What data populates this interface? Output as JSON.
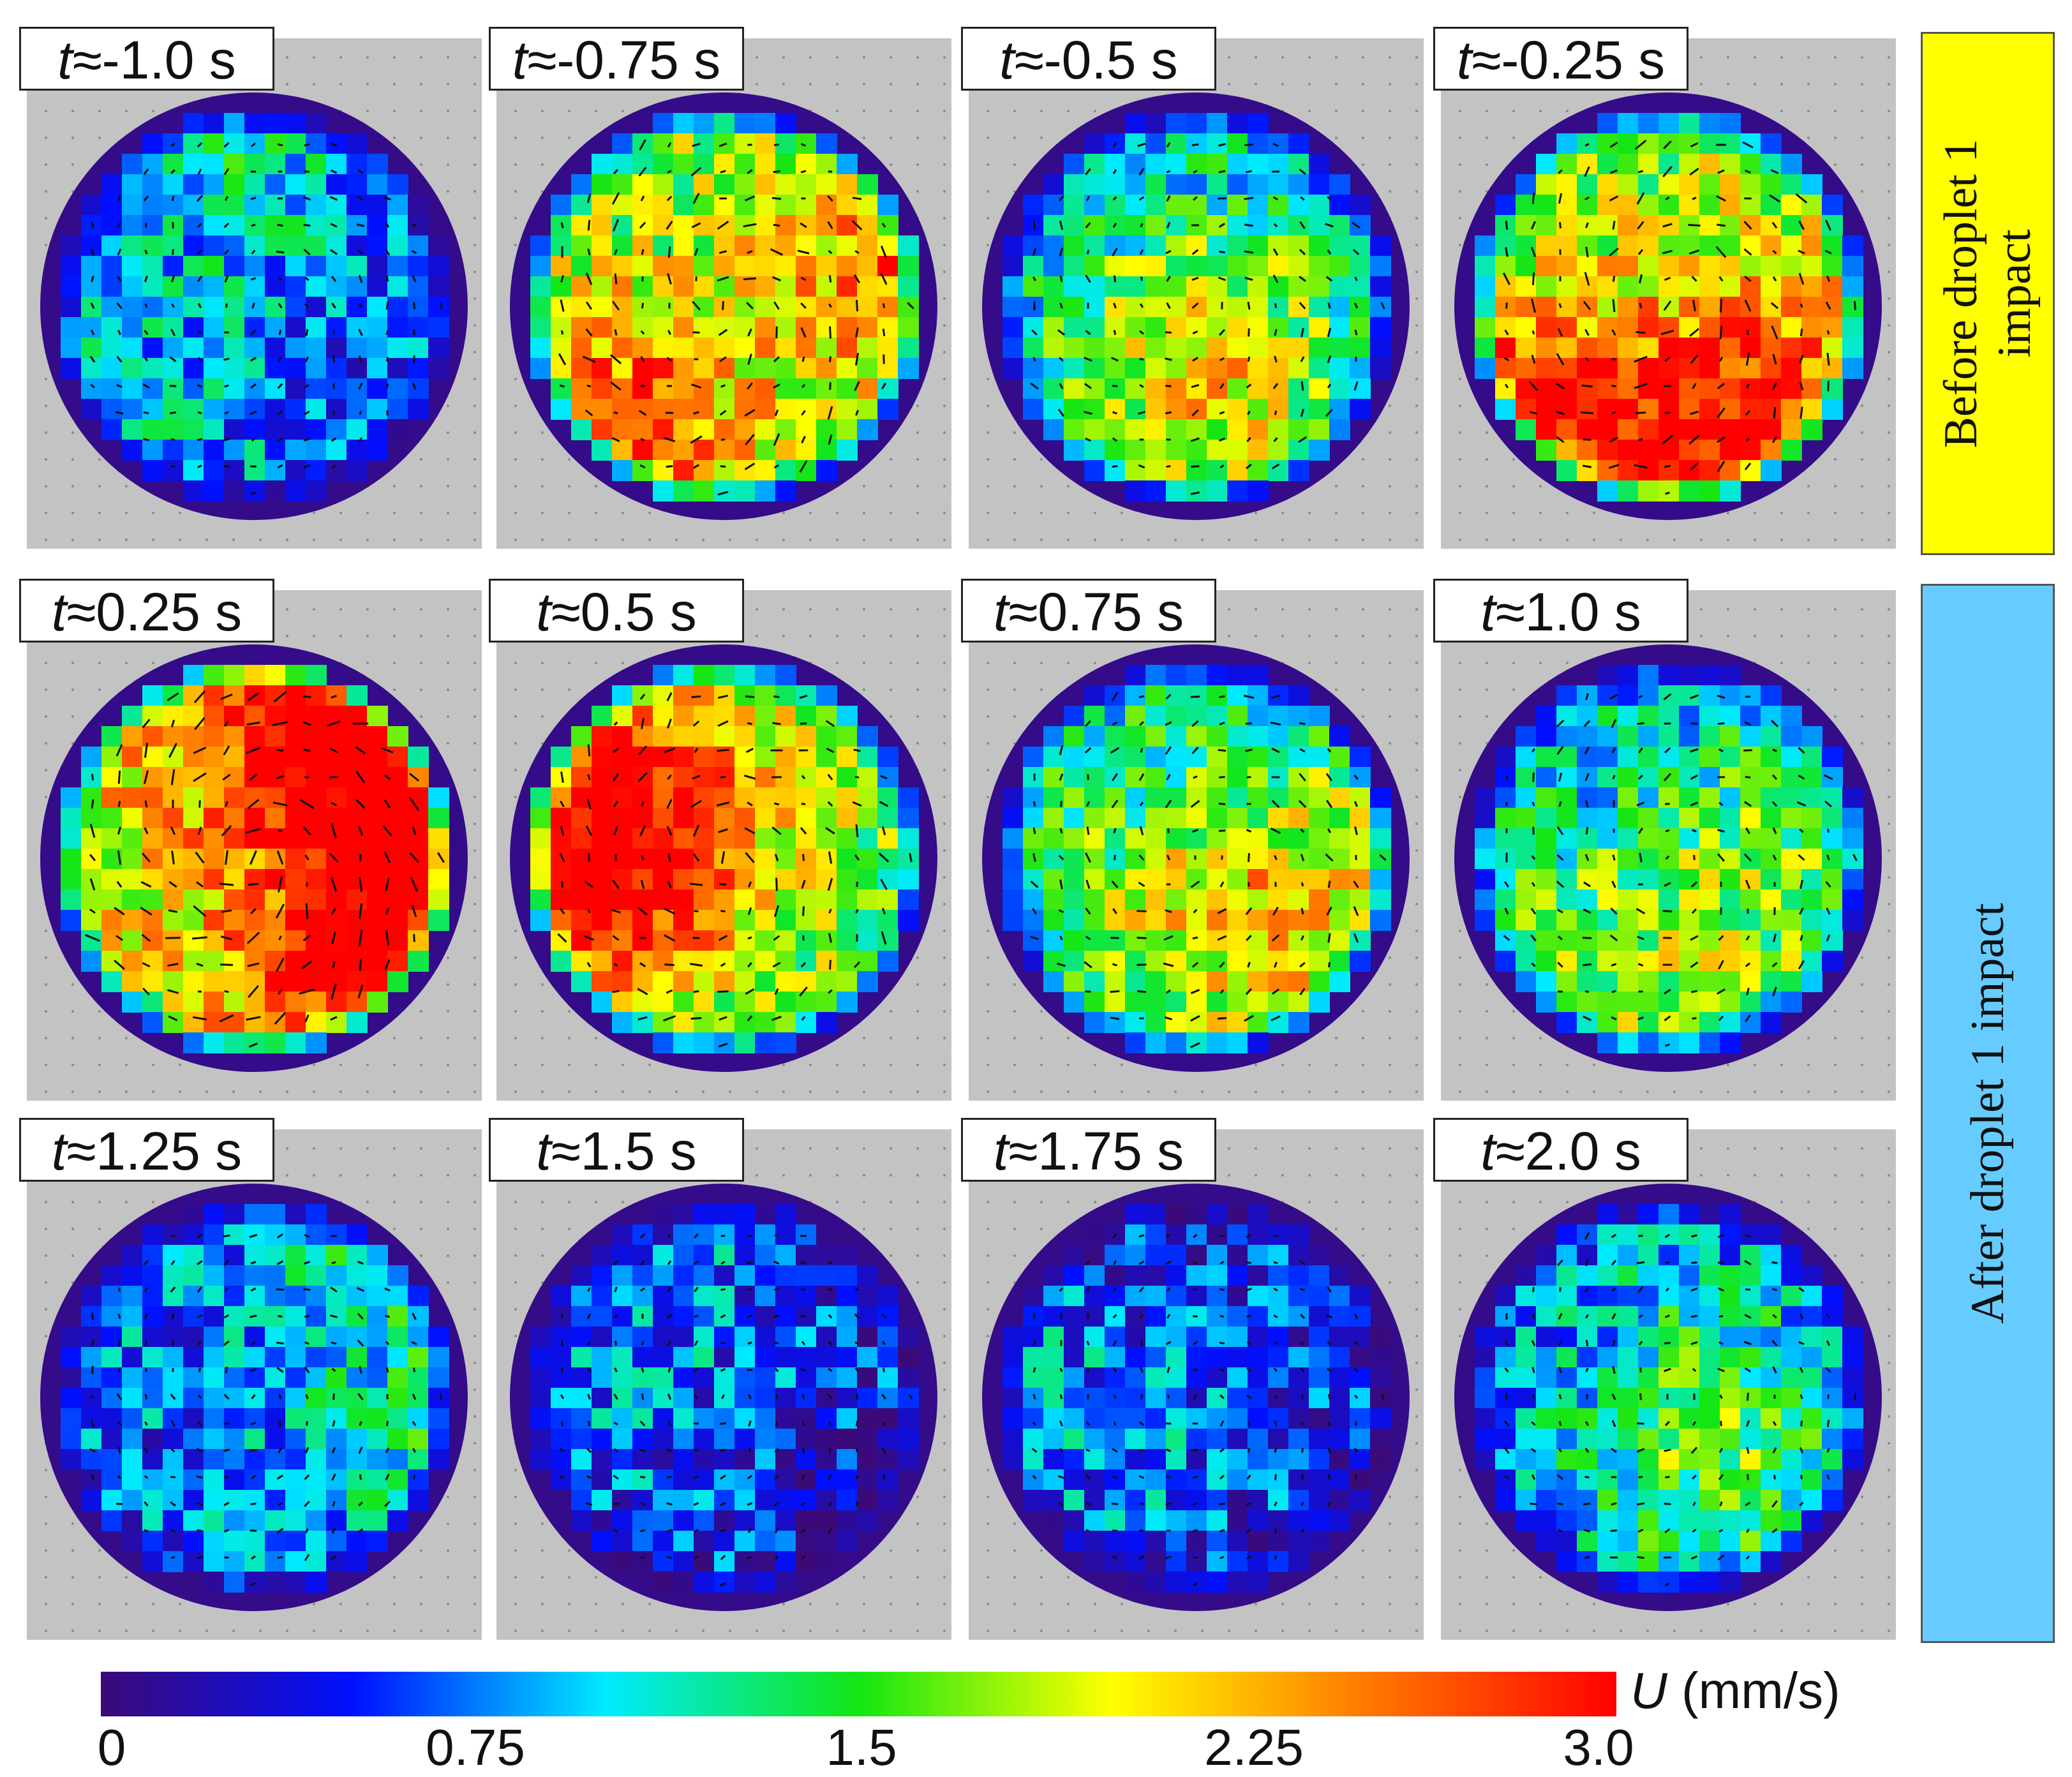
{
  "panels": [
    {
      "label_var": "t",
      "label_rest": "≈-1.0 s",
      "level": 0.3
    },
    {
      "label_var": "t",
      "label_rest": "≈-0.75 s",
      "level": 0.7
    },
    {
      "label_var": "t",
      "label_rest": "≈-0.5 s",
      "level": 0.4
    },
    {
      "label_var": "t",
      "label_rest": "≈-0.25 s",
      "level": 0.75
    },
    {
      "label_var": "t",
      "label_rest": "≈0.25 s",
      "level": 0.9
    },
    {
      "label_var": "t",
      "label_rest": "≈0.5 s",
      "level": 0.68
    },
    {
      "label_var": "t",
      "label_rest": "≈0.75 s",
      "level": 0.48
    },
    {
      "label_var": "t",
      "label_rest": "≈1.0 s",
      "level": 0.42
    },
    {
      "label_var": "t",
      "label_rest": "≈1.25 s",
      "level": 0.3
    },
    {
      "label_var": "t",
      "label_rest": "≈1.5 s",
      "level": 0.18
    },
    {
      "label_var": "t",
      "label_rest": "≈1.75 s",
      "level": 0.18
    },
    {
      "label_var": "t",
      "label_rest": "≈2.0 s",
      "level": 0.3
    }
  ],
  "groups": {
    "before": {
      "line1": "Before droplet 1",
      "line2": "impact",
      "color": "#ffff00"
    },
    "after": {
      "line1": "After droplet 1 impact",
      "color": "#66ccff"
    }
  },
  "colorbar": {
    "ticks": [
      "0",
      "0.75",
      "1.5",
      "2.25",
      "3.0"
    ],
    "label_var": "U",
    "label_unit": " (mm/s)",
    "colors": [
      "#3b0a78",
      "#0010ff",
      "#00eaff",
      "#14e614",
      "#ffff00",
      "#ff7a00",
      "#ff0000"
    ]
  },
  "panel_background": "#c3c3c3"
}
